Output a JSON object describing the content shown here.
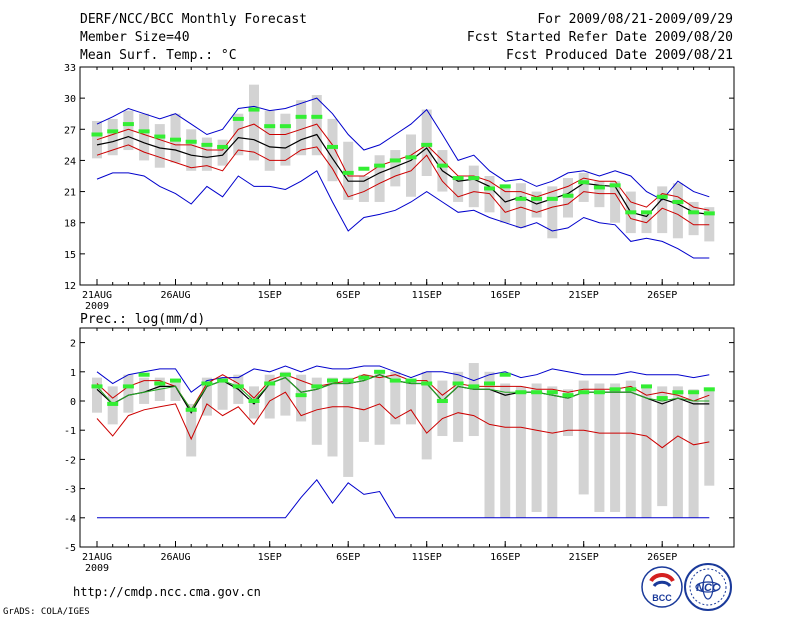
{
  "header": {
    "title": "DERF/NCC/BCC Monthly Forecast",
    "member_size": "Member Size=40",
    "temp_label": "Mean Surf. Temp.: °C",
    "for_range": "For 2009/08/21-2009/09/29",
    "fcst_started": "Fcst Started Refer Date 2009/08/20",
    "fcst_produced": "Fcst Produced Date 2009/08/21"
  },
  "footer": {
    "url": "http://cmdp.ncc.cma.gov.cn",
    "grads": "GrADS: COLA/IGES",
    "logo_bcc": "BCC",
    "logo_ncc": "NCC"
  },
  "chart_data": [
    {
      "type": "line",
      "title": "Mean Surf. Temp.: °C",
      "xlabel": "",
      "ylabel": "",
      "ylim": [
        12,
        33
      ],
      "yticks": [
        12,
        15,
        18,
        21,
        24,
        27,
        30,
        33
      ],
      "x_tick_labels": [
        "21AUG",
        "26AUG",
        "1SEP",
        "6SEP",
        "11SEP",
        "16SEP",
        "21SEP",
        "26SEP"
      ],
      "x_tick_days": [
        0,
        5,
        11,
        16,
        21,
        26,
        31,
        36
      ],
      "year_label": "2009",
      "days": 40,
      "colors": {
        "max_min": "#0000cc",
        "spread": "#cc0000",
        "mean": "#000000",
        "box": "#d3d3d3",
        "marker": "#33ee33"
      },
      "series": [
        {
          "name": "max",
          "values": [
            27.5,
            28.2,
            29.0,
            28.5,
            28.0,
            28.5,
            27.5,
            26.5,
            27.0,
            29.0,
            29.2,
            28.8,
            29.0,
            29.5,
            30.0,
            28.5,
            26.5,
            25.0,
            25.5,
            26.5,
            27.5,
            28.9,
            26.5,
            24.0,
            24.5,
            23.0,
            22.0,
            22.2,
            21.5,
            22.0,
            22.8,
            23.0,
            22.5,
            23.0,
            22.5,
            21.0,
            20.2,
            22.0,
            21.0,
            20.5
          ]
        },
        {
          "name": "upper",
          "values": [
            26.0,
            26.5,
            27.0,
            26.5,
            26.0,
            25.5,
            25.5,
            25.0,
            25.0,
            27.0,
            27.5,
            26.5,
            26.5,
            27.0,
            27.5,
            25.5,
            22.5,
            22.5,
            23.5,
            24.0,
            24.5,
            25.5,
            24.0,
            22.5,
            22.5,
            22.0,
            21.0,
            21.0,
            20.5,
            21.0,
            21.5,
            22.3,
            22.0,
            22.0,
            20.0,
            19.5,
            20.8,
            20.5,
            19.5,
            19.2
          ]
        },
        {
          "name": "mean",
          "values": [
            25.5,
            25.8,
            26.3,
            25.7,
            25.2,
            25.0,
            24.5,
            24.3,
            24.5,
            26.2,
            26.0,
            25.3,
            25.2,
            26.0,
            26.5,
            24.2,
            22.0,
            22.0,
            22.8,
            23.4,
            24.0,
            25.2,
            23.0,
            22.0,
            22.2,
            21.5,
            20.0,
            20.5,
            19.8,
            20.3,
            20.8,
            21.8,
            21.6,
            21.5,
            19.0,
            18.6,
            20.3,
            19.8,
            19.0,
            18.8
          ]
        },
        {
          "name": "lower",
          "values": [
            24.5,
            25.0,
            25.5,
            24.8,
            24.3,
            23.8,
            23.3,
            23.5,
            23.0,
            25.0,
            24.8,
            24.0,
            24.0,
            25.0,
            25.3,
            23.2,
            20.5,
            21.0,
            21.8,
            22.5,
            23.0,
            24.5,
            22.0,
            20.5,
            21.0,
            20.8,
            19.0,
            19.5,
            19.0,
            19.5,
            19.8,
            21.0,
            20.8,
            20.8,
            18.4,
            18.0,
            19.4,
            18.8,
            17.8,
            17.8
          ]
        },
        {
          "name": "min",
          "values": [
            22.2,
            22.8,
            22.8,
            22.5,
            21.5,
            20.8,
            19.8,
            21.5,
            20.5,
            22.5,
            21.5,
            21.5,
            21.2,
            22.0,
            23.0,
            20.0,
            17.2,
            18.5,
            18.8,
            19.2,
            20.0,
            21.0,
            20.0,
            19.0,
            19.2,
            18.5,
            18.0,
            17.5,
            18.0,
            17.2,
            17.5,
            18.5,
            18.0,
            17.8,
            16.2,
            16.5,
            16.2,
            15.5,
            14.6,
            14.6
          ]
        }
      ],
      "boxes": {
        "top": [
          27.8,
          28.0,
          28.8,
          28.5,
          27.5,
          28.5,
          27.0,
          26.2,
          26.0,
          28.5,
          31.3,
          28.8,
          28.5,
          29.8,
          30.3,
          28.0,
          25.8,
          22.5,
          24.5,
          25.0,
          26.5,
          28.9,
          25.0,
          22.5,
          23.5,
          22.5,
          21.5,
          21.8,
          21.0,
          21.5,
          22.3,
          22.8,
          22.0,
          22.0,
          21.0,
          18.8,
          21.5,
          21.8,
          20.0,
          19.5
        ],
        "bottom": [
          24.2,
          24.5,
          25.0,
          24.0,
          23.3,
          23.8,
          23.0,
          23.0,
          23.5,
          24.5,
          24.0,
          23.0,
          23.5,
          24.5,
          24.5,
          22.0,
          20.2,
          20.0,
          20.0,
          21.5,
          20.5,
          22.5,
          21.0,
          20.0,
          19.5,
          19.0,
          18.0,
          17.5,
          18.5,
          16.5,
          18.5,
          20.0,
          19.5,
          18.0,
          17.0,
          17.0,
          17.0,
          16.5,
          16.8,
          16.2
        ]
      },
      "markers": [
        26.5,
        26.8,
        27.5,
        26.8,
        26.3,
        26.0,
        25.8,
        25.5,
        25.3,
        28.0,
        28.9,
        27.3,
        27.3,
        28.2,
        28.2,
        25.3,
        22.8,
        23.2,
        23.5,
        24.0,
        24.3,
        25.5,
        23.5,
        22.3,
        22.3,
        21.3,
        21.5,
        20.3,
        20.3,
        20.3,
        20.6,
        21.9,
        21.4,
        21.6,
        19.0,
        19.0,
        20.5,
        20.0,
        19.0,
        18.9
      ]
    },
    {
      "type": "line",
      "title": "Prec.: log(mm/d)",
      "xlabel": "",
      "ylabel": "",
      "ylim": [
        -5,
        2.5
      ],
      "yticks": [
        -5,
        -4,
        -3,
        -2,
        -1,
        0,
        1,
        2
      ],
      "x_tick_labels": [
        "21AUG",
        "26AUG",
        "1SEP",
        "6SEP",
        "11SEP",
        "16SEP",
        "21SEP",
        "26SEP"
      ],
      "x_tick_days": [
        0,
        5,
        11,
        16,
        21,
        26,
        31,
        36
      ],
      "year_label": "2009",
      "days": 40,
      "colors": {
        "max_min": "#0000cc",
        "spread": "#cc0000",
        "mean": "#000000",
        "green": "#22aa22",
        "box": "#d3d3d3",
        "marker": "#33ee33"
      },
      "series": [
        {
          "name": "max",
          "values": [
            1.0,
            0.6,
            0.9,
            1.0,
            1.1,
            1.1,
            0.3,
            0.7,
            0.8,
            0.8,
            1.1,
            1.0,
            1.2,
            1.0,
            1.2,
            1.1,
            1.1,
            1.2,
            1.2,
            1.0,
            0.8,
            1.0,
            1.0,
            0.9,
            0.7,
            0.9,
            1.0,
            0.8,
            0.9,
            1.1,
            1.0,
            0.9,
            0.9,
            0.9,
            1.0,
            0.9,
            0.9,
            0.9,
            0.8,
            0.9
          ]
        },
        {
          "name": "upper",
          "values": [
            0.6,
            0.1,
            0.5,
            0.7,
            0.7,
            0.5,
            -0.3,
            0.6,
            0.9,
            0.6,
            0.1,
            0.7,
            0.9,
            0.7,
            0.5,
            0.6,
            0.7,
            0.9,
            0.8,
            0.9,
            0.7,
            0.7,
            0.2,
            0.6,
            0.5,
            0.5,
            0.5,
            0.5,
            0.4,
            0.4,
            0.3,
            0.4,
            0.4,
            0.4,
            0.5,
            0.2,
            0.3,
            0.2,
            0.0,
            0.2
          ]
        },
        {
          "name": "mean",
          "values": [
            0.4,
            -0.1,
            0.2,
            0.3,
            0.5,
            0.5,
            -0.4,
            0.5,
            0.7,
            0.4,
            -0.1,
            0.6,
            0.8,
            0.3,
            0.4,
            0.6,
            0.6,
            0.7,
            0.9,
            0.7,
            0.6,
            0.6,
            0.0,
            0.5,
            0.4,
            0.4,
            0.2,
            0.3,
            0.3,
            0.2,
            0.1,
            0.3,
            0.3,
            0.3,
            0.3,
            0.1,
            -0.1,
            0.1,
            -0.1,
            -0.1
          ]
        },
        {
          "name": "green",
          "values": [
            0.5,
            -0.1,
            0.2,
            0.3,
            0.4,
            0.5,
            -0.3,
            0.5,
            0.7,
            0.5,
            0.0,
            0.6,
            0.8,
            0.3,
            0.4,
            0.6,
            0.6,
            0.7,
            0.9,
            0.7,
            0.6,
            0.6,
            0.0,
            0.5,
            0.4,
            0.4,
            0.3,
            0.3,
            0.3,
            0.2,
            0.1,
            0.3,
            0.3,
            0.3,
            0.3,
            0.1,
            0.0,
            0.1,
            0.0,
            0.0
          ]
        },
        {
          "name": "lower",
          "values": [
            -0.6,
            -1.2,
            -0.5,
            -0.3,
            -0.2,
            -0.1,
            -1.3,
            -0.1,
            -0.5,
            -0.2,
            -0.8,
            0.0,
            0.3,
            -0.5,
            -0.3,
            -0.2,
            -0.2,
            -0.3,
            -0.1,
            -0.6,
            -0.3,
            -1.1,
            -0.6,
            -0.4,
            -0.5,
            -0.8,
            -0.9,
            -0.9,
            -1.0,
            -1.1,
            -1.0,
            -1.0,
            -1.1,
            -1.1,
            -1.1,
            -1.2,
            -1.6,
            -1.2,
            -1.5,
            -1.4
          ]
        },
        {
          "name": "min",
          "values": [
            -4,
            -4,
            -4,
            -4,
            -4,
            -4,
            -4,
            -4,
            -4,
            -4,
            -4,
            -4,
            -4,
            -3.3,
            -2.7,
            -3.5,
            -2.8,
            -3.2,
            -3.1,
            -4,
            -4,
            -4,
            -4,
            -4,
            -4,
            -4,
            -4,
            -4,
            -4,
            -4,
            -4,
            -4,
            -4,
            -4,
            -4,
            -4,
            -4,
            -4,
            -4,
            -4
          ]
        }
      ],
      "boxes": {
        "top": [
          0.8,
          0.5,
          0.9,
          0.8,
          0.8,
          0.7,
          -0.1,
          0.8,
          0.8,
          0.9,
          0.5,
          0.9,
          1.0,
          0.9,
          0.8,
          0.8,
          0.8,
          0.9,
          1.0,
          1.0,
          0.7,
          1.0,
          0.7,
          1.0,
          1.3,
          1.0,
          0.6,
          0.5,
          0.6,
          0.5,
          0.4,
          0.7,
          0.6,
          0.6,
          0.7,
          0.5,
          0.5,
          0.5,
          0.4,
          0.4
        ],
        "bottom": [
          -0.4,
          -0.8,
          -0.4,
          -0.1,
          0.0,
          0.0,
          -1.9,
          -0.5,
          -0.3,
          -0.1,
          -0.6,
          -0.6,
          -0.5,
          -0.7,
          -1.5,
          -1.9,
          -2.6,
          -1.4,
          -1.5,
          -0.8,
          -0.8,
          -2.0,
          -1.2,
          -1.4,
          -1.2,
          -4.0,
          -4.0,
          -4.0,
          -3.8,
          -4.0,
          -1.2,
          -3.2,
          -3.8,
          -3.8,
          -4.0,
          -4.0,
          -3.6,
          -4.0,
          -4.0,
          -2.9
        ]
      },
      "markers": [
        0.5,
        -0.1,
        0.5,
        0.9,
        0.6,
        0.7,
        -0.3,
        0.6,
        0.7,
        0.5,
        0.0,
        0.6,
        0.9,
        0.2,
        0.5,
        0.7,
        0.7,
        0.8,
        1.0,
        0.7,
        0.7,
        0.6,
        0.0,
        0.6,
        0.5,
        0.6,
        0.9,
        0.3,
        0.3,
        0.3,
        0.2,
        0.3,
        0.3,
        0.4,
        0.4,
        0.5,
        0.1,
        0.3,
        0.3,
        0.4
      ]
    }
  ]
}
